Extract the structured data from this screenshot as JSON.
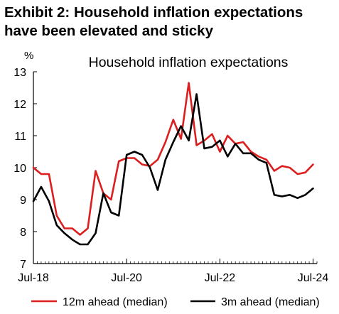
{
  "exhibit_title": [
    "Exhibit 2: Household inflation expectations",
    "have been elevated and sticky"
  ],
  "colors": {
    "series_12m": "#dc1e1e",
    "series_3m": "#000000",
    "axis": "#000000",
    "background": "#ffffff"
  },
  "chart_data": {
    "type": "line",
    "title": "Household inflation expectations",
    "ylabel": "%",
    "xlabel": "",
    "ylim": [
      7,
      13
    ],
    "yticks": [
      7,
      8,
      9,
      10,
      11,
      12,
      13
    ],
    "xlim": [
      "2018-07",
      "2024-08"
    ],
    "xtick_labels": [
      {
        "label": "Jul-18",
        "date": "2018-07"
      },
      {
        "label": "Jul-20",
        "date": "2020-07"
      },
      {
        "label": "Jul-22",
        "date": "2022-07"
      },
      {
        "label": "Jul-24",
        "date": "2024-07"
      }
    ],
    "grid": false,
    "legend": "bottom",
    "x": [
      "2018-07",
      "2018-09",
      "2018-11",
      "2019-01",
      "2019-03",
      "2019-05",
      "2019-07",
      "2019-09",
      "2019-11",
      "2020-01",
      "2020-03",
      "2020-05",
      "2020-07",
      "2020-09",
      "2020-11",
      "2021-01",
      "2021-03",
      "2021-05",
      "2021-07",
      "2021-09",
      "2021-11",
      "2022-01",
      "2022-03",
      "2022-05",
      "2022-07",
      "2022-09",
      "2022-11",
      "2023-01",
      "2023-03",
      "2023-05",
      "2023-07",
      "2023-09",
      "2023-11",
      "2024-01",
      "2024-03",
      "2024-05",
      "2024-07"
    ],
    "series": [
      {
        "name": "12m ahead (median)",
        "color": "#dc1e1e",
        "values": [
          10.0,
          9.8,
          9.8,
          8.5,
          8.1,
          8.1,
          7.9,
          8.1,
          9.9,
          9.2,
          9.0,
          10.2,
          10.3,
          10.3,
          10.1,
          10.05,
          10.25,
          10.8,
          11.5,
          10.9,
          12.65,
          10.7,
          10.85,
          11.05,
          10.5,
          11.0,
          10.75,
          10.8,
          10.5,
          10.35,
          10.25,
          9.9,
          10.05,
          10.0,
          9.8,
          9.85,
          10.1
        ]
      },
      {
        "name": "3m ahead (median)",
        "color": "#000000",
        "values": [
          8.95,
          9.4,
          8.95,
          8.2,
          7.95,
          7.75,
          7.6,
          7.6,
          7.95,
          9.2,
          8.6,
          8.5,
          10.4,
          10.5,
          10.4,
          10.0,
          9.3,
          10.25,
          10.8,
          11.3,
          10.85,
          12.3,
          10.6,
          10.65,
          10.85,
          10.35,
          10.75,
          10.45,
          10.45,
          10.25,
          10.15,
          9.15,
          9.1,
          9.15,
          9.05,
          9.15,
          9.35
        ]
      }
    ]
  }
}
